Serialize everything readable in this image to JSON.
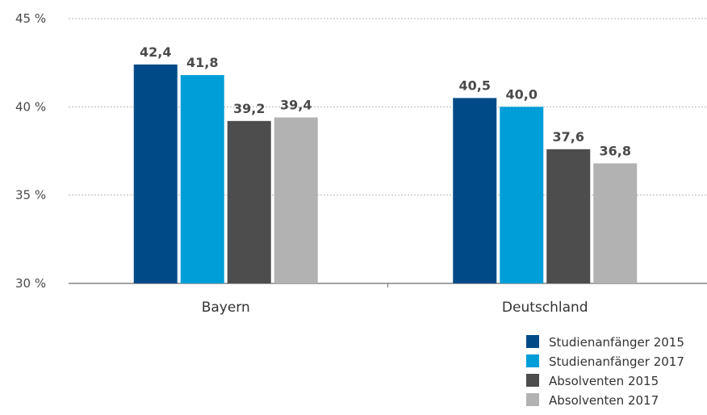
{
  "chart_data": {
    "type": "bar",
    "categories": [
      "Bayern",
      "Deutschland"
    ],
    "series": [
      {
        "name": "Studienanfänger 2015",
        "color": "#004b87",
        "values": [
          42.4,
          40.5
        ],
        "labels": [
          "42,4",
          "40,5"
        ]
      },
      {
        "name": "Studienanfänger 2017",
        "color": "#009ed8",
        "values": [
          41.8,
          40.0
        ],
        "labels": [
          "41,8",
          "40,0"
        ]
      },
      {
        "name": "Absolventen 2015",
        "color": "#4d4d4d",
        "values": [
          39.2,
          37.6
        ],
        "labels": [
          "39,2",
          "37,6"
        ]
      },
      {
        "name": "Absolventen 2017",
        "color": "#b2b2b2",
        "values": [
          39.4,
          36.8
        ],
        "labels": [
          "39,4",
          "36,8"
        ]
      }
    ],
    "y_ticks": [
      {
        "value": 30,
        "label": "30 %"
      },
      {
        "value": 35,
        "label": "35 %"
      },
      {
        "value": 40,
        "label": "40 %"
      },
      {
        "value": 45,
        "label": "45 %"
      }
    ],
    "ylim": [
      30,
      45
    ],
    "grid": true,
    "legend_position": "bottom-right"
  }
}
